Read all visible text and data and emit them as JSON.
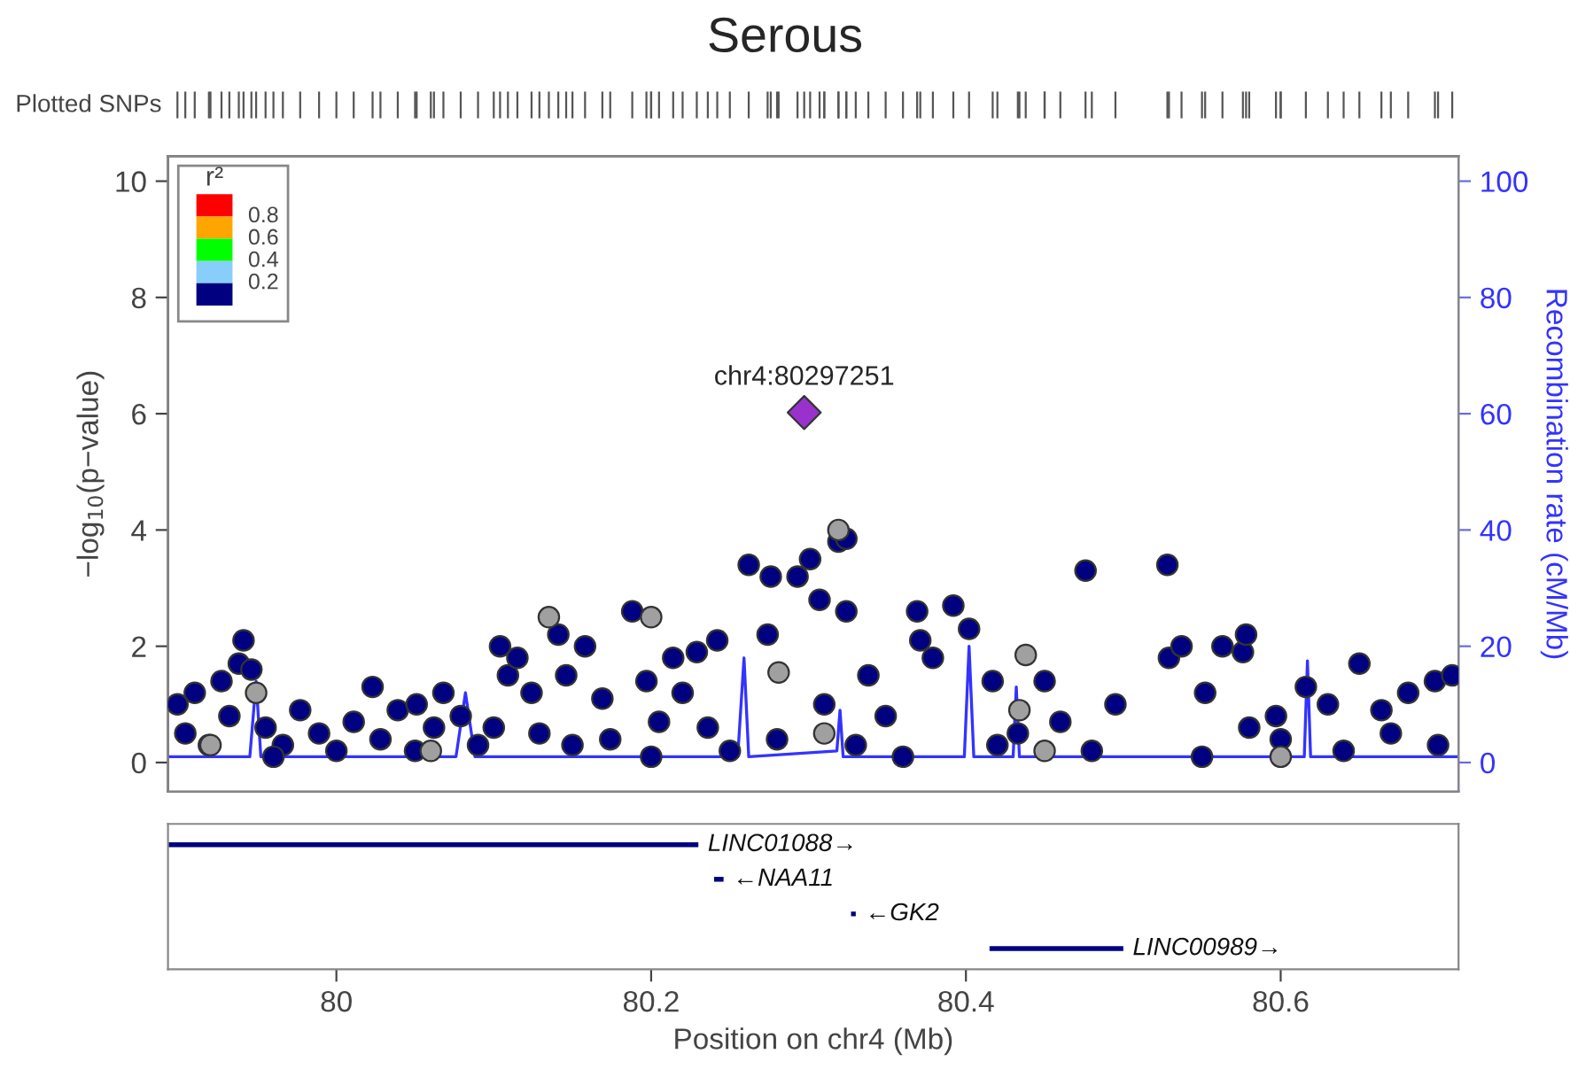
{
  "chart_data": [
    {
      "type": "scatter",
      "title": "Serous",
      "ylabel": "−log$_{10}$(p−value)",
      "y2label": "Recombination rate (cM/Mb)",
      "xlim": [
        79.893,
        80.713
      ],
      "ylim": [
        -0.5,
        10.43
      ],
      "yticks": [
        0,
        2,
        4,
        6,
        8,
        10
      ],
      "y2lim": [
        -5,
        104.3
      ],
      "y2ticks": [
        0,
        20,
        40,
        60,
        80,
        100
      ],
      "tick_labels": "y",
      "grid": false,
      "annotations": [
        {
          "text": "chr4:80297251",
          "x": 80.297251,
          "y": 6.02
        },
        "Plotted SNPs",
        "r²",
        "0.8",
        "0.6",
        "0.4",
        "0.2"
      ],
      "series": [
        {
          "color": "#000080",
          "marker": "circle",
          "x": [
            79.899,
            79.904,
            79.91,
            79.919,
            79.927,
            79.932,
            79.938,
            79.941,
            79.946,
            79.955,
            79.966,
            79.977,
            79.989,
            80.0,
            80.011,
            80.023,
            80.028,
            80.039,
            80.051,
            80.062,
            80.068,
            80.079,
            80.09,
            80.104,
            80.109,
            80.115,
            80.124,
            80.129,
            80.141,
            80.146,
            80.158,
            80.169,
            80.174,
            80.188,
            80.197,
            80.205,
            80.214,
            80.22,
            80.229,
            80.236,
            80.242,
            80.262,
            80.274,
            80.276,
            80.293,
            80.301,
            80.307,
            80.319,
            80.324,
            80.324,
            80.338,
            80.349,
            80.369,
            80.371,
            80.379,
            80.392,
            80.402,
            80.417,
            80.433,
            80.45,
            80.476,
            80.495,
            80.528,
            80.529,
            80.537,
            80.552,
            80.563,
            80.576,
            80.578,
            80.597,
            80.616,
            80.63,
            80.65,
            80.664,
            80.681,
            80.698,
            80.709,
            79.96,
            80.05,
            80.15,
            80.25,
            80.28,
            80.31,
            80.36,
            80.42,
            80.48,
            80.55,
            80.6,
            80.64,
            80.7,
            80.2,
            80.1,
            80.33,
            80.46,
            80.58,
            80.67
          ],
          "values": [
            1.0,
            0.5,
            1.2,
            0.3,
            1.4,
            0.8,
            1.7,
            2.1,
            1.6,
            0.6,
            0.3,
            0.9,
            0.5,
            0.2,
            0.7,
            1.3,
            0.4,
            0.9,
            1.0,
            0.6,
            1.2,
            0.8,
            0.3,
            2.0,
            1.5,
            1.8,
            1.2,
            0.5,
            2.2,
            1.5,
            2.0,
            1.1,
            0.4,
            2.6,
            1.4,
            0.7,
            1.8,
            1.2,
            1.9,
            0.6,
            2.1,
            3.4,
            2.2,
            3.2,
            3.2,
            3.5,
            2.8,
            3.8,
            3.85,
            2.6,
            1.5,
            0.8,
            2.6,
            2.1,
            1.8,
            2.7,
            2.3,
            1.4,
            0.5,
            1.4,
            3.3,
            1.0,
            3.4,
            1.8,
            2.0,
            1.2,
            2.0,
            1.9,
            2.2,
            0.8,
            1.3,
            1.0,
            1.7,
            0.9,
            1.2,
            1.4,
            1.5,
            0.1,
            0.2,
            0.3,
            0.2,
            0.4,
            1.0,
            0.1,
            0.3,
            0.2,
            0.1,
            0.4,
            0.2,
            0.3,
            0.1,
            0.6,
            0.3,
            0.7,
            0.6,
            0.5
          ]
        },
        {
          "color": "#a0a0a0",
          "marker": "circle",
          "x": [
            79.949,
            80.135,
            80.2,
            80.281,
            80.319,
            80.438,
            80.434,
            80.31,
            80.06,
            79.92,
            80.6,
            80.45
          ],
          "values": [
            1.2,
            2.5,
            2.5,
            1.55,
            4.0,
            1.85,
            0.9,
            0.5,
            0.2,
            0.3,
            0.1,
            0.2
          ]
        },
        {
          "color": "#9932cc",
          "marker": "diamond",
          "x": [
            80.297251
          ],
          "values": [
            6.02
          ]
        },
        {
          "type": "line",
          "axis": "y2",
          "color": "#3333ff",
          "x": [
            79.893,
            79.945,
            79.949,
            79.952,
            80.076,
            80.082,
            80.088,
            80.255,
            80.259,
            80.262,
            80.318,
            80.32,
            80.322,
            80.399,
            80.402,
            80.405,
            80.43,
            80.432,
            80.434,
            80.615,
            80.617,
            80.619,
            80.713
          ],
          "values": [
            1,
            1,
            14,
            1,
            1,
            12,
            1,
            1,
            18,
            1,
            2,
            9,
            1,
            1,
            20,
            1,
            1,
            13,
            1,
            1,
            17.5,
            1,
            1
          ]
        }
      ]
    },
    {
      "type": "bar",
      "orientation": "horizontal",
      "xlabel": "Position on chr4 (Mb)",
      "xlim": [
        79.893,
        80.713
      ],
      "xticks": [
        80,
        80.2,
        80.4,
        80.6
      ],
      "tick_labels": "x",
      "categories": [
        null,
        null,
        null,
        null
      ],
      "color": "#000080",
      "base": [
        79.893,
        80.24,
        80.327,
        80.415
      ],
      "values": [
        0.337,
        0.006,
        0.003,
        0.085
      ],
      "value_labels": [
        "LINC01088→",
        "←NAA11",
        "←GK2",
        "LINC00989→"
      ]
    }
  ]
}
